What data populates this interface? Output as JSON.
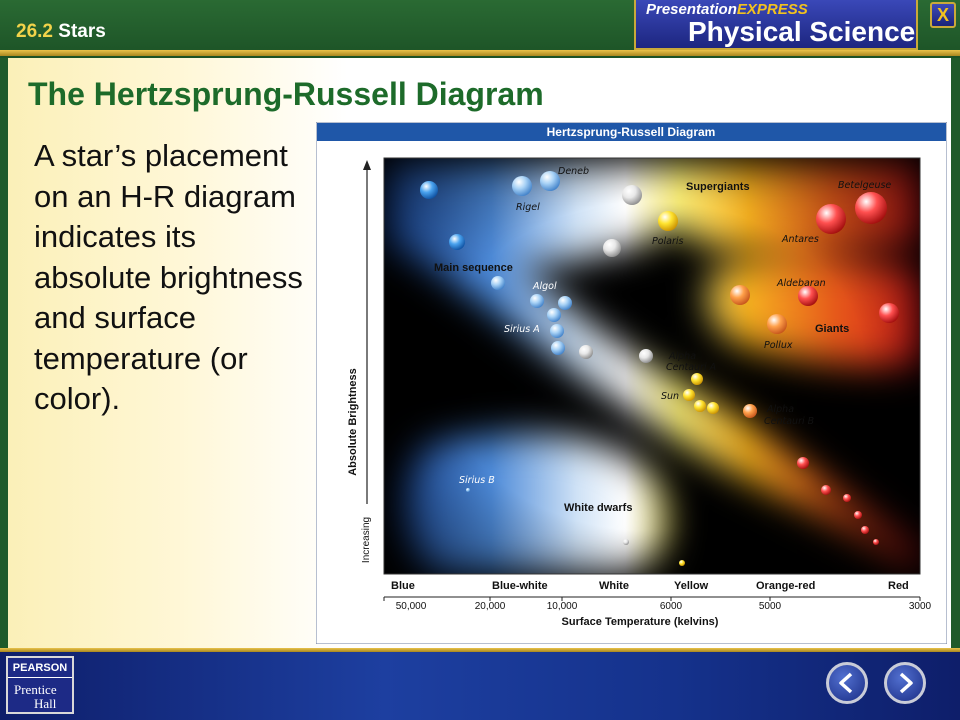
{
  "header": {
    "section_number": "26.2",
    "section_title": "Stars",
    "brand_top_1": "Presentation",
    "brand_top_2": "EXPRESS",
    "brand_bottom": "Physical Science",
    "close_label": "X"
  },
  "slide": {
    "title": "The Hertzsprung-Russell Diagram",
    "bullet": "A star’s placement on an H-R diagram indicates its absolute brightness and surface temperature (or color)."
  },
  "diagram": {
    "title": "Hertzsprung-Russell Diagram",
    "y_axis_label": "Absolute Brightness",
    "y_axis_direction": "Increasing",
    "x_axis_label": "Surface Temperature (kelvins)",
    "color_labels": [
      "Blue",
      "Blue-white",
      "White",
      "Yellow",
      "Orange-red",
      "Red"
    ],
    "temperature_ticks": [
      "50,000",
      "20,000",
      "10,000",
      "6000",
      "5000",
      "3000"
    ],
    "group_labels": {
      "supergiants": "Supergiants",
      "main_sequence": "Main sequence",
      "giants": "Giants",
      "white_dwarfs": "White dwarfs"
    },
    "star_labels": {
      "deneb": "Deneb",
      "rigel": "Rigel",
      "polaris": "Polaris",
      "betelgeuse": "Betelgeuse",
      "antares": "Antares",
      "algol": "Algol",
      "sirius_a": "Sirius A",
      "aldebaran": "Aldebaran",
      "pollux": "Pollux",
      "alpha_centauri_a_1": "Alpha",
      "alpha_centauri_a_2": "Centauri A",
      "sun": "Sun",
      "alpha_centauri_b_1": "Alpha",
      "alpha_centauri_b_2": "Centauri B",
      "sirius_b": "Sirius B"
    }
  },
  "footer": {
    "publisher_1": "PEARSON",
    "publisher_2": "Prentice",
    "publisher_3": "Hall"
  },
  "icons": {
    "prev": "chevron-left-icon",
    "next": "chevron-right-icon"
  }
}
